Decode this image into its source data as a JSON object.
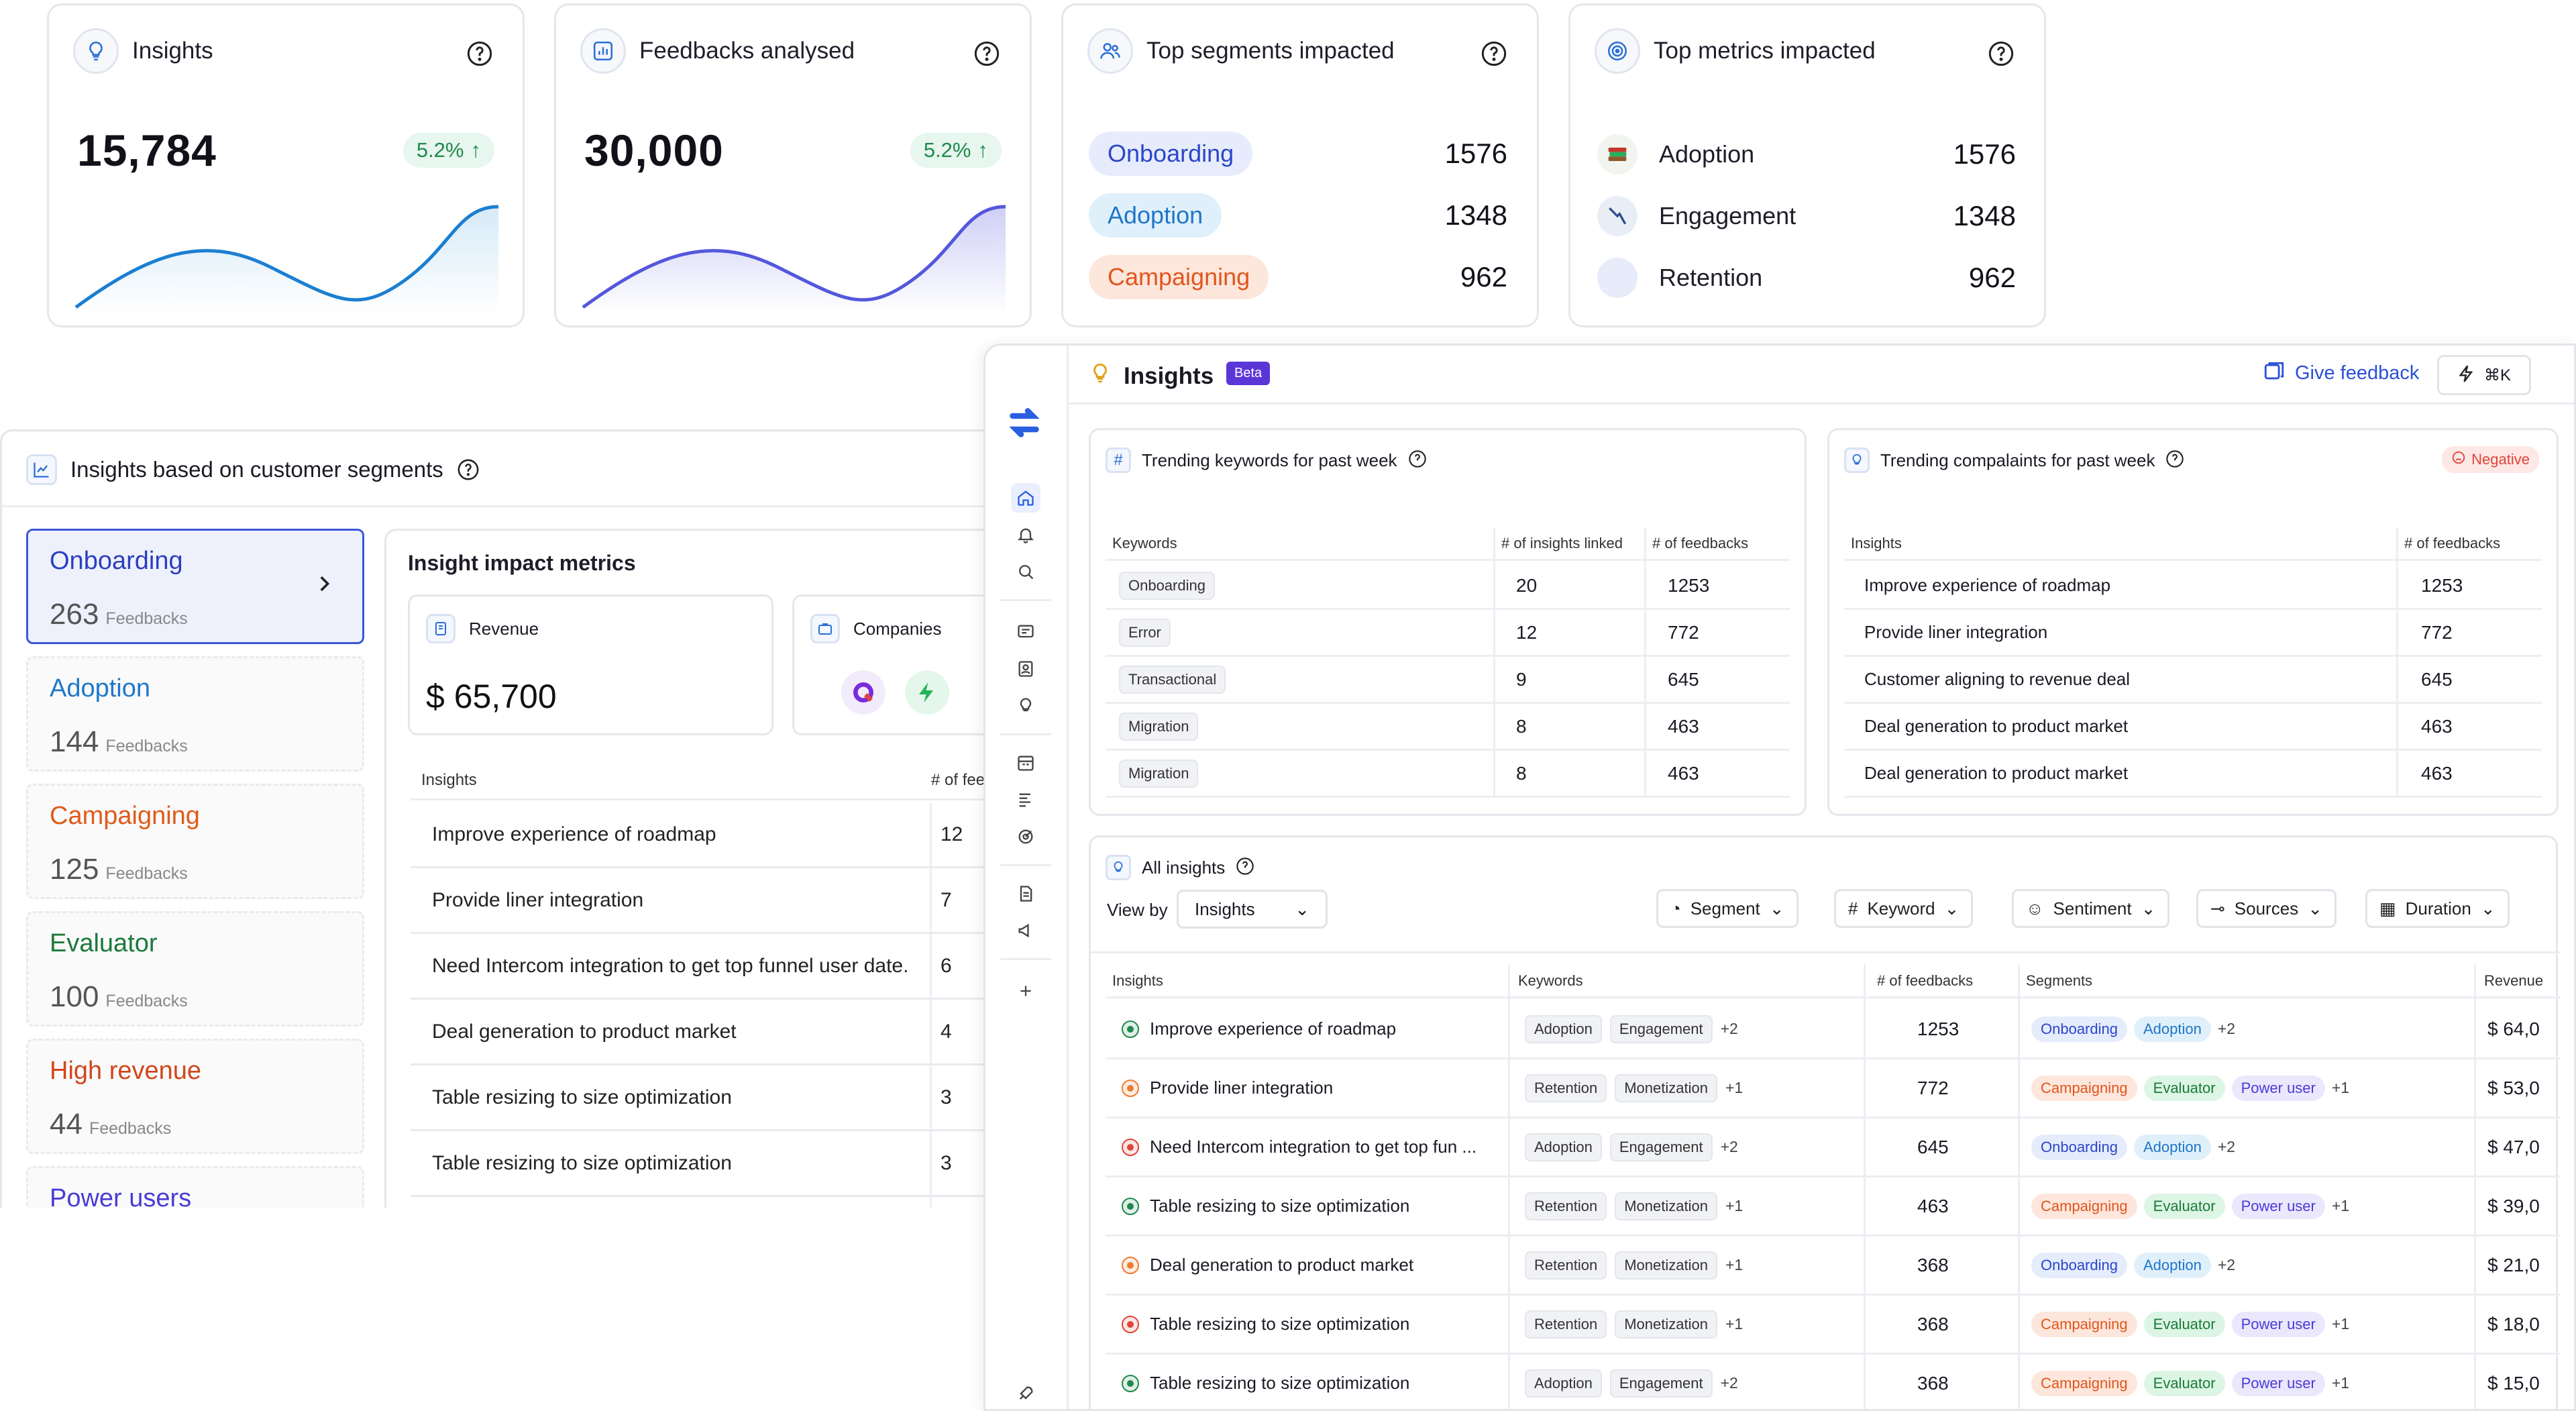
{
  "cards": {
    "insights": {
      "title": "Insights",
      "value": "15,784",
      "delta": "5.2%"
    },
    "feedbacks": {
      "title": "Feedbacks analysed",
      "value": "30,000",
      "delta": "5.2%"
    },
    "segments": {
      "title": "Top segments impacted",
      "rows": [
        {
          "label": "Onboarding",
          "value": "1576"
        },
        {
          "label": "Adoption",
          "value": "1348"
        },
        {
          "label": "Campaigning",
          "value": "962"
        }
      ]
    },
    "metrics": {
      "title": "Top metrics impacted",
      "rows": [
        {
          "label": "Adoption",
          "value": "1576"
        },
        {
          "label": "Engagement",
          "value": "1348"
        },
        {
          "label": "Retention",
          "value": "962"
        }
      ]
    }
  },
  "left": {
    "title": "Insights based on customer segments",
    "segments": [
      {
        "name": "Onboarding",
        "count": "263",
        "unit": "Feedbacks",
        "color": "#2c3fbf"
      },
      {
        "name": "Adoption",
        "count": "144",
        "unit": "Feedbacks",
        "color": "#1e78c8"
      },
      {
        "name": "Campaigning",
        "count": "125",
        "unit": "Feedbacks",
        "color": "#e05a1a"
      },
      {
        "name": "Evaluator",
        "count": "100",
        "unit": "Feedbacks",
        "color": "#1b7a3a"
      },
      {
        "name": "High revenue",
        "count": "44",
        "unit": "Feedbacks",
        "color": "#d2461c"
      },
      {
        "name": "Power users",
        "count": "",
        "unit": "",
        "color": "#4a3bd6"
      }
    ],
    "impact": {
      "title": "Insight impact metrics",
      "revenue_label": "Revenue",
      "revenue_value": "$ 65,700",
      "companies_label": "Companies",
      "col_insights": "Insights",
      "col_feedbacks": "# of feed",
      "rows": [
        {
          "text": "Improve experience of roadmap",
          "num": "12"
        },
        {
          "text": "Provide liner integration",
          "num": "7"
        },
        {
          "text": "Need Intercom integration to get top funnel user date.",
          "num": "6"
        },
        {
          "text": "Deal generation to product market",
          "num": "4"
        },
        {
          "text": "Table resizing to size optimization",
          "num": "3"
        },
        {
          "text": "Table resizing to size optimization",
          "num": "3"
        }
      ]
    }
  },
  "main": {
    "title": "Insights",
    "badge": "Beta",
    "give_feedback": "Give feedback",
    "shortcut": "⌘K",
    "keywords": {
      "title": "Trending keywords for past week",
      "cols": [
        "Keywords",
        "# of insights linked",
        "# of feedbacks"
      ],
      "rows": [
        [
          "Onboarding",
          "20",
          "1253"
        ],
        [
          "Error",
          "12",
          "772"
        ],
        [
          "Transactional",
          "9",
          "645"
        ],
        [
          "Migration",
          "8",
          "463"
        ],
        [
          "Migration",
          "8",
          "463"
        ]
      ]
    },
    "complaints": {
      "title": "Trending compalaints for past week",
      "badge": "Negative",
      "cols": [
        "Insights",
        "# of feedbacks"
      ],
      "rows": [
        [
          "Improve experience of roadmap",
          "1253"
        ],
        [
          "Provide liner integration",
          "772"
        ],
        [
          "Customer aligning to revenue deal",
          "645"
        ],
        [
          "Deal generation to product market",
          "463"
        ],
        [
          "Deal generation to product market",
          "463"
        ]
      ]
    },
    "all": {
      "title": "All insights",
      "view_by_label": "View by",
      "view_by_value": "Insights",
      "filters": [
        "Segment",
        "Keyword",
        "Sentiment",
        "Sources",
        "Duration"
      ],
      "cols": [
        "Insights",
        "Keywords",
        "# of feedbacks",
        "Segments",
        "Revenue"
      ],
      "rows": [
        {
          "sent": "positive",
          "text": "Improve experience of roadmap",
          "k1": "Adoption",
          "k2": "Engagement",
          "kp": "+2",
          "n": "1253",
          "segs": [
            "Onboarding",
            "Adoption"
          ],
          "sp": "+2",
          "rev": "$ 64,0"
        },
        {
          "sent": "neutral",
          "text": "Provide liner integration",
          "k1": "Retention",
          "k2": "Monetization",
          "kp": "+1",
          "n": "772",
          "segs": [
            "Campaigning",
            "Evaluator",
            "Power user"
          ],
          "sp": "+1",
          "rev": "$ 53,0"
        },
        {
          "sent": "negative",
          "text": "Need Intercom integration to get top fun ...",
          "k1": "Adoption",
          "k2": "Engagement",
          "kp": "+2",
          "n": "645",
          "segs": [
            "Onboarding",
            "Adoption"
          ],
          "sp": "+2",
          "rev": "$ 47,0"
        },
        {
          "sent": "positive",
          "text": "Table resizing to size optimization",
          "k1": "Retention",
          "k2": "Monetization",
          "kp": "+1",
          "n": "463",
          "segs": [
            "Campaigning",
            "Evaluator",
            "Power user"
          ],
          "sp": "+1",
          "rev": "$ 39,0"
        },
        {
          "sent": "neutral",
          "text": "Deal generation to product market",
          "k1": "Retention",
          "k2": "Monetization",
          "kp": "+1",
          "n": "368",
          "segs": [
            "Onboarding",
            "Adoption"
          ],
          "sp": "+2",
          "rev": "$ 21,0"
        },
        {
          "sent": "negative",
          "text": "Table resizing to size optimization",
          "k1": "Retention",
          "k2": "Monetization",
          "kp": "+1",
          "n": "368",
          "segs": [
            "Campaigning",
            "Evaluator",
            "Power user"
          ],
          "sp": "+1",
          "rev": "$ 18,0"
        },
        {
          "sent": "positive",
          "text": "Table resizing to size optimization",
          "k1": "Adoption",
          "k2": "Engagement",
          "kp": "+2",
          "n": "368",
          "segs": [
            "Campaigning",
            "Evaluator",
            "Power user"
          ],
          "sp": "+1",
          "rev": "$ 15,0"
        }
      ]
    }
  },
  "colors": {
    "accent": "#2b4fd8",
    "positive": "#1f8a4d",
    "negative": "#e0443a",
    "neutral": "#ef7b2f"
  }
}
